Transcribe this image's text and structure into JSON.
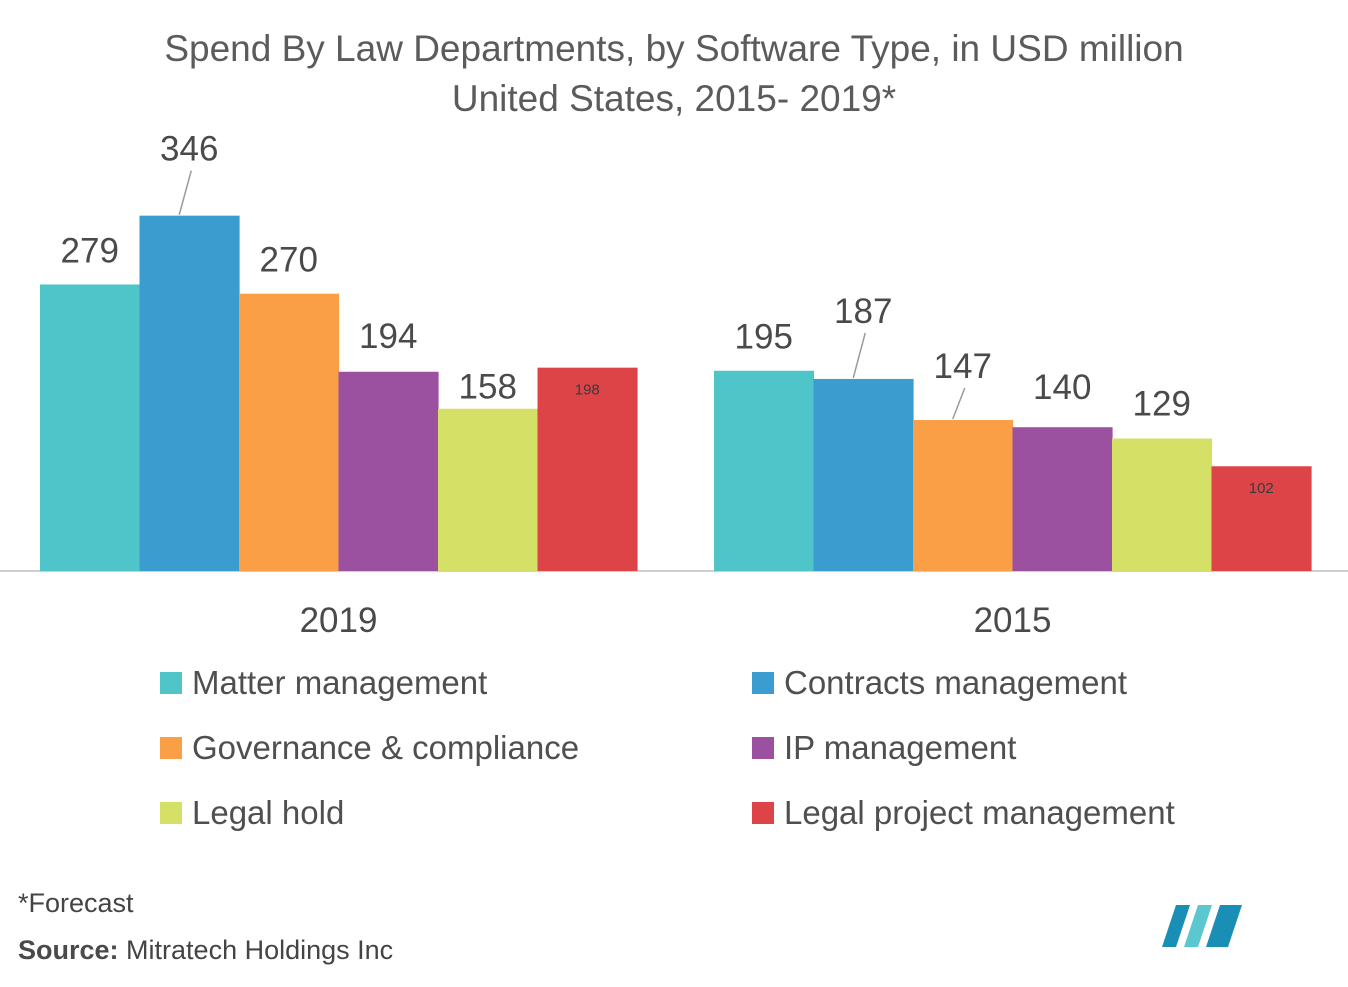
{
  "chart_data": {
    "type": "bar",
    "title": "Spend By Law Departments, by Software Type, in USD million",
    "subtitle": "United States, 2015- 2019*",
    "categories": [
      "2019",
      "2015"
    ],
    "series": [
      {
        "name": "Matter management",
        "values": [
          279,
          195
        ],
        "color": "#4fc5c9"
      },
      {
        "name": "Contracts management",
        "values": [
          346,
          187
        ],
        "color": "#3b9dcf"
      },
      {
        "name": "Governance & compliance",
        "values": [
          270,
          147
        ],
        "color": "#fb9f46"
      },
      {
        "name": "IP management",
        "values": [
          194,
          140
        ],
        "color": "#9b50a0"
      },
      {
        "name": "Legal hold",
        "values": [
          158,
          129
        ],
        "color": "#d4e066"
      },
      {
        "name": "Legal project management",
        "values": [
          198,
          102
        ],
        "color": "#dd4448"
      }
    ],
    "data_labels": [
      [
        "279",
        "346",
        "270",
        "194",
        "158",
        "198"
      ],
      [
        "195",
        "187",
        "147",
        "140",
        "129",
        "102"
      ]
    ],
    "xlabel": "",
    "ylabel": "",
    "ylim": [
      0,
      400
    ],
    "grid": false,
    "legend_position": "bottom"
  },
  "footnote": "*Forecast",
  "source_label": "Source:",
  "source_text": "Mitratech Holdings Inc",
  "logo_colors": [
    "#1a8fb5",
    "#5bc8d0"
  ]
}
